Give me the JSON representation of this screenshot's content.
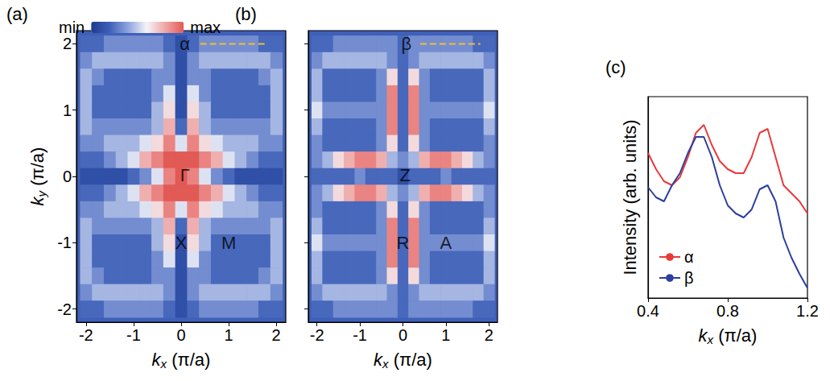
{
  "chart_data": [
    {
      "type": "heatmap",
      "panel": "(a)",
      "x": [
        -2,
        -1.75,
        -1.5,
        -1.25,
        -1,
        -0.75,
        -0.5,
        -0.25,
        0,
        0.25,
        0.5,
        0.75,
        1,
        1.25,
        1.5,
        1.75,
        2
      ],
      "y": [
        2,
        1.75,
        1.5,
        1.25,
        1,
        0.75,
        0.5,
        0.25,
        0,
        -0.25,
        -0.5,
        -0.75,
        -1,
        -1.25,
        -1.5,
        -1.75,
        -2
      ],
      "z": [
        [
          2,
          2,
          3,
          3,
          3,
          3,
          3,
          2,
          1,
          2,
          3,
          3,
          3,
          3,
          3,
          2,
          2
        ],
        [
          3,
          4,
          4,
          4,
          4,
          4,
          4,
          3,
          1,
          3,
          4,
          4,
          4,
          4,
          4,
          4,
          3
        ],
        [
          4,
          3,
          2,
          2,
          2,
          2,
          3,
          3,
          1,
          3,
          3,
          2,
          2,
          2,
          2,
          3,
          4
        ],
        [
          4,
          2,
          2,
          2,
          2,
          2,
          3,
          5,
          1,
          5,
          3,
          2,
          2,
          2,
          2,
          2,
          4
        ],
        [
          4,
          2,
          2,
          2,
          2,
          2,
          4,
          6,
          1,
          6,
          4,
          2,
          2,
          2,
          2,
          2,
          4
        ],
        [
          4,
          3,
          3,
          3,
          3,
          3,
          4,
          7,
          2,
          7,
          4,
          3,
          3,
          3,
          3,
          3,
          4
        ],
        [
          3,
          3,
          4,
          4,
          4,
          5,
          6,
          8,
          5,
          8,
          6,
          5,
          4,
          4,
          4,
          3,
          3
        ],
        [
          2,
          2,
          3,
          4,
          5,
          7,
          8,
          9,
          9,
          9,
          8,
          7,
          5,
          4,
          3,
          2,
          2
        ],
        [
          1,
          1,
          1,
          1,
          2,
          3,
          5,
          8,
          9,
          8,
          5,
          3,
          2,
          1,
          1,
          1,
          1
        ],
        [
          2,
          2,
          3,
          4,
          5,
          7,
          8,
          9,
          9,
          9,
          8,
          7,
          5,
          4,
          3,
          2,
          2
        ],
        [
          3,
          3,
          4,
          4,
          4,
          5,
          6,
          8,
          5,
          8,
          6,
          5,
          4,
          4,
          4,
          3,
          3
        ],
        [
          4,
          3,
          3,
          3,
          3,
          3,
          4,
          7,
          2,
          7,
          4,
          3,
          3,
          3,
          3,
          3,
          4
        ],
        [
          4,
          2,
          2,
          2,
          2,
          2,
          4,
          6,
          1,
          6,
          4,
          2,
          2,
          2,
          2,
          2,
          4
        ],
        [
          4,
          2,
          2,
          2,
          2,
          2,
          3,
          5,
          1,
          5,
          3,
          2,
          2,
          2,
          2,
          2,
          4
        ],
        [
          4,
          3,
          2,
          2,
          2,
          2,
          3,
          3,
          1,
          3,
          3,
          2,
          2,
          2,
          2,
          3,
          4
        ],
        [
          3,
          4,
          4,
          4,
          4,
          4,
          4,
          3,
          1,
          3,
          4,
          4,
          4,
          4,
          4,
          4,
          3
        ],
        [
          2,
          2,
          3,
          3,
          3,
          3,
          3,
          2,
          1,
          2,
          3,
          3,
          3,
          3,
          3,
          2,
          2
        ]
      ],
      "colorbar": {
        "range": [
          0,
          9
        ],
        "labels": [
          "min",
          "max"
        ]
      },
      "xlim": [
        -2.2,
        2.2
      ],
      "ylim": [
        -2.2,
        2.2
      ],
      "xticks": [
        -2,
        -1,
        0,
        1,
        2
      ],
      "yticks": [
        -2,
        -1,
        0,
        1,
        2
      ],
      "xlabel": "kx (π/a)",
      "ylabel": "ky (π/a)",
      "grid": false,
      "annotations": [
        {
          "text": "Γ",
          "x": 0.08,
          "y": 0.02
        },
        {
          "text": "X",
          "x": 0,
          "y": -1
        },
        {
          "text": "M",
          "x": 1,
          "y": -1
        },
        {
          "text": "α",
          "x": 0.08,
          "y": 2
        }
      ],
      "cut": {
        "x": [
          0.4,
          1.8
        ],
        "y": [
          2,
          2
        ],
        "color": "#f0c030",
        "line_style": "dashed"
      }
    },
    {
      "type": "heatmap",
      "panel": "(b)",
      "x": [
        -2,
        -1.75,
        -1.5,
        -1.25,
        -1,
        -0.75,
        -0.5,
        -0.25,
        0,
        0.25,
        0.5,
        0.75,
        1,
        1.25,
        1.5,
        1.75,
        2
      ],
      "y": [
        2,
        1.75,
        1.5,
        1.25,
        1,
        0.75,
        0.5,
        0.25,
        0,
        -0.25,
        -0.5,
        -0.75,
        -1,
        -1.25,
        -1.5,
        -1.75,
        -2
      ],
      "z": [
        [
          2,
          2,
          3,
          3,
          3,
          3,
          3,
          3,
          2,
          3,
          3,
          3,
          3,
          3,
          3,
          2,
          2
        ],
        [
          3,
          4,
          4,
          4,
          4,
          4,
          4,
          3,
          2,
          3,
          4,
          4,
          4,
          4,
          4,
          4,
          3
        ],
        [
          4,
          2,
          2,
          2,
          2,
          2,
          3,
          6,
          2,
          6,
          3,
          2,
          2,
          2,
          2,
          2,
          4
        ],
        [
          4,
          2,
          2,
          2,
          2,
          2,
          3,
          8,
          2,
          8,
          3,
          2,
          2,
          2,
          2,
          2,
          4
        ],
        [
          5,
          3,
          3,
          3,
          3,
          3,
          3,
          8,
          2,
          8,
          3,
          3,
          3,
          3,
          3,
          3,
          5
        ],
        [
          4,
          2,
          2,
          2,
          2,
          2,
          3,
          8,
          2,
          8,
          3,
          2,
          2,
          2,
          2,
          2,
          4
        ],
        [
          3,
          2,
          2,
          2,
          2,
          2,
          3,
          6,
          2,
          6,
          3,
          2,
          2,
          2,
          2,
          2,
          3
        ],
        [
          3,
          4,
          6,
          7,
          8,
          8,
          7,
          4,
          3,
          4,
          7,
          8,
          8,
          7,
          6,
          4,
          3
        ],
        [
          2,
          2,
          2,
          2,
          3,
          2,
          2,
          2,
          1,
          2,
          2,
          2,
          3,
          2,
          2,
          2,
          2
        ],
        [
          3,
          4,
          6,
          7,
          8,
          8,
          7,
          4,
          3,
          4,
          7,
          8,
          8,
          7,
          6,
          4,
          3
        ],
        [
          3,
          2,
          2,
          2,
          2,
          2,
          3,
          6,
          2,
          6,
          3,
          2,
          2,
          2,
          2,
          2,
          3
        ],
        [
          4,
          2,
          2,
          2,
          2,
          2,
          3,
          8,
          2,
          8,
          3,
          2,
          2,
          2,
          2,
          2,
          4
        ],
        [
          5,
          3,
          3,
          3,
          3,
          3,
          3,
          8,
          2,
          8,
          3,
          3,
          3,
          3,
          3,
          3,
          5
        ],
        [
          4,
          2,
          2,
          2,
          2,
          2,
          3,
          8,
          2,
          8,
          3,
          2,
          2,
          2,
          2,
          2,
          4
        ],
        [
          4,
          2,
          2,
          2,
          2,
          2,
          3,
          6,
          2,
          6,
          3,
          2,
          2,
          2,
          2,
          2,
          4
        ],
        [
          3,
          4,
          4,
          4,
          4,
          4,
          4,
          3,
          2,
          3,
          4,
          4,
          4,
          4,
          4,
          4,
          3
        ],
        [
          2,
          2,
          3,
          3,
          3,
          3,
          3,
          3,
          2,
          3,
          3,
          3,
          3,
          3,
          3,
          2,
          2
        ]
      ],
      "xlim": [
        -2.2,
        2.2
      ],
      "ylim": [
        -2.2,
        2.2
      ],
      "xticks": [
        -2,
        -1,
        0,
        1,
        2
      ],
      "yticks": [
        -2,
        -1,
        0,
        1,
        2
      ],
      "xlabel": "kx (π/a)",
      "tick_labels": "x",
      "grid": false,
      "annotations": [
        {
          "text": "Z",
          "x": 0.05,
          "y": 0.02
        },
        {
          "text": "R",
          "x": 0,
          "y": -1
        },
        {
          "text": "A",
          "x": 1,
          "y": -1
        },
        {
          "text": "β",
          "x": 0.08,
          "y": 2
        }
      ],
      "cut": {
        "x": [
          0.4,
          1.8
        ],
        "y": [
          2,
          2
        ],
        "color": "#f0c030",
        "line_style": "dashed"
      }
    },
    {
      "type": "line",
      "panel": "(c)",
      "x": [
        0.4,
        0.44,
        0.48,
        0.52,
        0.56,
        0.6,
        0.64,
        0.68,
        0.72,
        0.76,
        0.8,
        0.84,
        0.88,
        0.92,
        0.96,
        1.0,
        1.04,
        1.08,
        1.12,
        1.16,
        1.2
      ],
      "series": [
        {
          "name": "α",
          "color": "#e8393a",
          "values": [
            0.72,
            0.64,
            0.58,
            0.56,
            0.6,
            0.7,
            0.82,
            0.86,
            0.76,
            0.68,
            0.64,
            0.62,
            0.62,
            0.7,
            0.82,
            0.84,
            0.7,
            0.56,
            0.52,
            0.48,
            0.42
          ]
        },
        {
          "name": "β",
          "color": "#2c3e9e",
          "values": [
            0.55,
            0.5,
            0.48,
            0.56,
            0.62,
            0.72,
            0.8,
            0.8,
            0.7,
            0.56,
            0.46,
            0.42,
            0.4,
            0.44,
            0.54,
            0.56,
            0.48,
            0.3,
            0.2,
            0.12,
            0.05
          ]
        }
      ],
      "xlim": [
        0.4,
        1.2
      ],
      "ylim": [
        0,
        1
      ],
      "xticks": [
        0.4,
        0.8,
        1.2
      ],
      "xlabel": "kx (π/a)",
      "ylabel": "Intensity (arb. units)",
      "tick_labels": "x",
      "grid": false,
      "legend": "lower left"
    }
  ]
}
